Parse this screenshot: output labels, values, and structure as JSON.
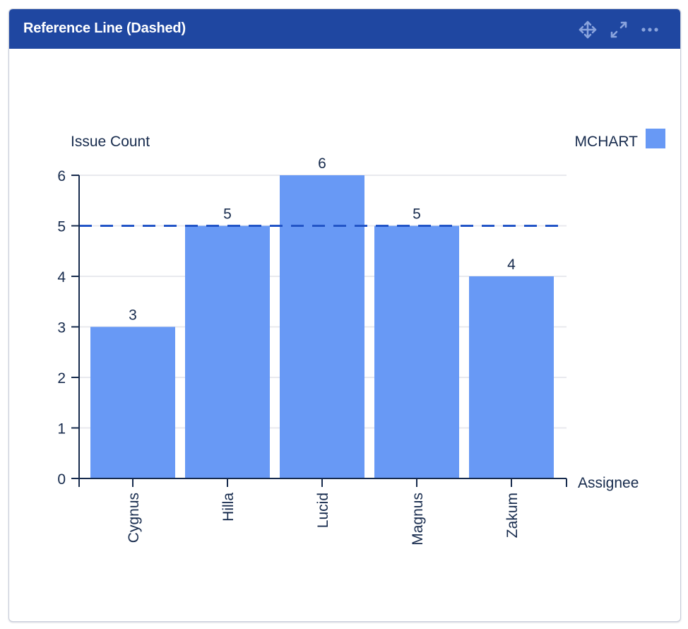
{
  "header": {
    "title": "Reference Line (Dashed)",
    "icons": [
      "move-icon",
      "expand-icon",
      "more-icon"
    ]
  },
  "colors": {
    "header_bg": "#1f47a1",
    "bar": "#6899f5",
    "reference_line": "#2255c7",
    "axis": "#172b4d",
    "grid": "#e8e9ee",
    "icon": "#8aa4dd"
  },
  "legend": {
    "label": "MCHART",
    "color": "#6899f5"
  },
  "chart_data": {
    "type": "bar",
    "title": "Reference Line (Dashed)",
    "xlabel": "Assignee",
    "ylabel": "Issue Count",
    "categories": [
      "Cygnus",
      "Hilla",
      "Lucid",
      "Magnus",
      "Zakum"
    ],
    "series": [
      {
        "name": "MCHART",
        "values": [
          3,
          5,
          6,
          5,
          4
        ]
      }
    ],
    "yticks": [
      0,
      1,
      2,
      3,
      4,
      5,
      6
    ],
    "ylim": [
      0,
      6
    ],
    "grid": true,
    "legend_position": "top-right",
    "data_labels": [
      "3",
      "5",
      "6",
      "5",
      "4"
    ],
    "reference_line": {
      "value": 5,
      "style": "dashed",
      "orientation": "horizontal"
    }
  }
}
